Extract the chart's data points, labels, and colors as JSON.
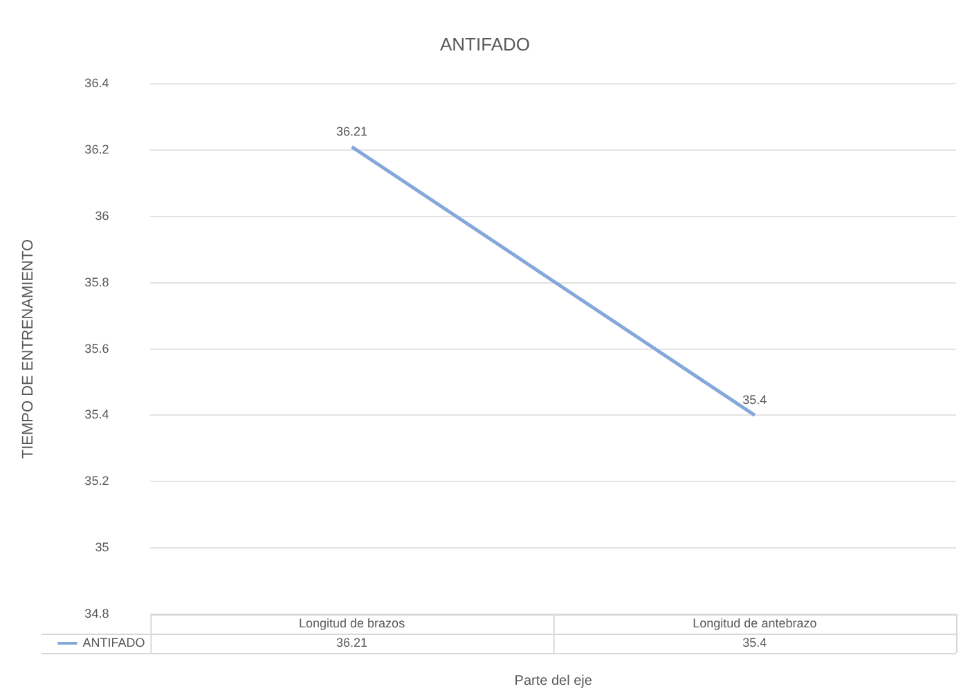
{
  "chart_data": {
    "type": "line",
    "title": "ANTIFADO",
    "ylabel": "TIEMPO DE ENTRENAMIENTO",
    "xlabel": "Parte del eje",
    "categories": [
      "Longitud de brazos",
      "Longitud de antebrazo"
    ],
    "series": [
      {
        "name": "ANTIFADO",
        "color": "#86a8d8",
        "values": [
          36.21,
          35.4
        ]
      }
    ],
    "ylim": [
      34.8,
      36.4
    ],
    "yticks": [
      34.8,
      35,
      35.2,
      35.4,
      35.6,
      35.8,
      36,
      36.2,
      36.4
    ],
    "annotations": [
      "36.21",
      "35.4"
    ],
    "grid": "y",
    "legend": "bottom",
    "marker": "none",
    "data_labels": true
  }
}
